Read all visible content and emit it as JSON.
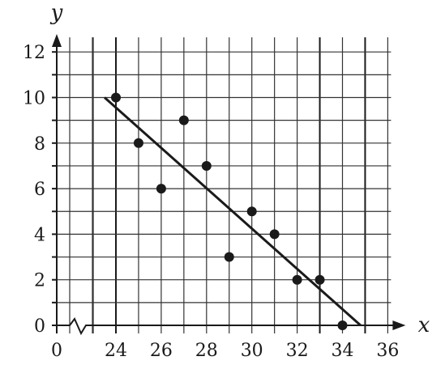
{
  "chart_data": {
    "type": "scatter",
    "title": "",
    "xlabel": "x",
    "ylabel": "y",
    "x_axis_break": true,
    "x_origin_label": "0",
    "xlim": [
      23,
      36
    ],
    "ylim": [
      0,
      12.5
    ],
    "x_ticks": [
      24,
      26,
      28,
      30,
      32,
      34,
      36
    ],
    "x_tick_labels": [
      "24",
      "26",
      "28",
      "30",
      "32",
      "34",
      "36"
    ],
    "y_ticks": [
      0,
      2,
      4,
      6,
      8,
      10,
      12
    ],
    "y_tick_labels": [
      "0",
      "2",
      "4",
      "6",
      "8",
      "10",
      "12"
    ],
    "grid": true,
    "emphasized_x_gridlines": [
      24,
      33,
      35
    ],
    "points": [
      {
        "x": 24,
        "y": 10
      },
      {
        "x": 25,
        "y": 8
      },
      {
        "x": 26,
        "y": 6
      },
      {
        "x": 27,
        "y": 9
      },
      {
        "x": 28,
        "y": 7
      },
      {
        "x": 29,
        "y": 3
      },
      {
        "x": 30,
        "y": 5
      },
      {
        "x": 31,
        "y": 4
      },
      {
        "x": 32,
        "y": 2
      },
      {
        "x": 33,
        "y": 2
      },
      {
        "x": 34,
        "y": 0
      }
    ],
    "line_of_best_fit": {
      "x1": 23.5,
      "y1": 10,
      "x2": 34.8,
      "y2": 0
    },
    "colors": {
      "ink": "#1a1a1a",
      "grid": "#333333",
      "background": "#ffffff"
    }
  }
}
